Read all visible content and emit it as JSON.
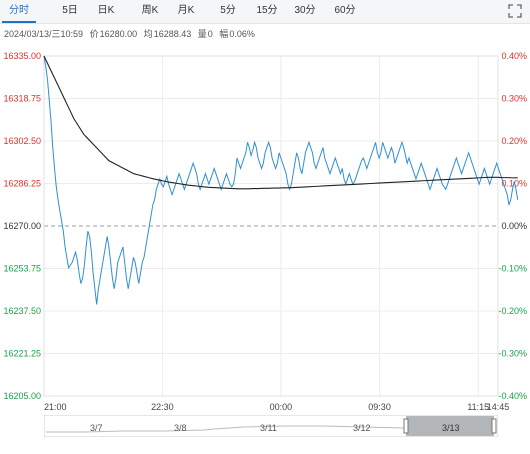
{
  "tabs": [
    {
      "label": "分时",
      "active": true
    },
    {
      "label": "5日",
      "active": false
    },
    {
      "label": "日K",
      "active": false
    },
    {
      "label": "周K",
      "active": false
    },
    {
      "label": "月K",
      "active": false
    },
    {
      "label": "5分",
      "active": false
    },
    {
      "label": "15分",
      "active": false
    },
    {
      "label": "30分",
      "active": false
    },
    {
      "label": "60分",
      "active": false
    }
  ],
  "info": {
    "datetime": "2024/03/13/三10:59",
    "price_label": "价",
    "price": "16280.00",
    "avg_label": "均",
    "avg": "16288.43",
    "vol_label": "量",
    "vol": "0",
    "change_label": "幅",
    "change": "0.06%"
  },
  "colors": {
    "up": "#e0322b",
    "down": "#1aa34a",
    "price_line": "#2f8fd6",
    "avg_line": "#222222",
    "grid": "#ececec",
    "tab_active": "#1f6fd2"
  },
  "chart_data": {
    "type": "line",
    "prev_close": 16270.0,
    "y_ticks": [
      16335.0,
      16318.75,
      16302.5,
      16286.25,
      16270.0,
      16253.75,
      16237.5,
      16221.25,
      16205.0
    ],
    "y_tick_labels": [
      "16335.00",
      "16318.75",
      "16302.50",
      "16286.25",
      "16270.00",
      "16253.75",
      "16237.50",
      "16221.25",
      "16205.00"
    ],
    "pct_tick_labels": [
      "0.40%",
      "0.30%",
      "0.20%",
      "0.10%",
      "0.00%",
      "-0.10%",
      "-0.20%",
      "-0.30%",
      "-0.40%"
    ],
    "ylim": [
      16205.0,
      16335.0
    ],
    "x_tick_labels": [
      "21:00",
      "22:30",
      "00:00",
      "09:30",
      "11:15",
      "14:45"
    ],
    "session_minutes_total": 345,
    "x_tick_minutes": [
      0,
      90,
      180,
      255,
      330,
      345
    ],
    "series": [
      {
        "values": [
          16335,
          16331,
          16326,
          16318,
          16310,
          16300,
          16292,
          16285,
          16280,
          16276,
          16272,
          16268,
          16262,
          16258,
          16254,
          16255,
          16256,
          16258,
          16260,
          16257,
          16252,
          16248,
          16250,
          16255,
          16262,
          16268,
          16266,
          16260,
          16252,
          16246,
          16240,
          16246,
          16250,
          16254,
          16258,
          16262,
          16266,
          16262,
          16256,
          16250,
          16246,
          16250,
          16256,
          16258,
          16260,
          16262,
          16256,
          16250,
          16246,
          16250,
          16254,
          16258,
          16256,
          16252,
          16248,
          16252,
          16256,
          16258,
          16262,
          16266,
          16270,
          16274,
          16278,
          16280,
          16284,
          16286,
          16288,
          16286,
          16285,
          16287,
          16289,
          16286,
          16284,
          16282,
          16284,
          16286,
          16288,
          16290,
          16288,
          16286,
          16284,
          16286,
          16288,
          16290,
          16292,
          16294,
          16292,
          16290,
          16286,
          16284,
          16286,
          16288,
          16290,
          16288,
          16286,
          16288,
          16290,
          16292,
          16290,
          16288,
          16286,
          16284,
          16286,
          16288,
          16290,
          16288,
          16286,
          16285,
          16286,
          16290,
          16296,
          16294,
          16292,
          16294,
          16296,
          16298,
          16302,
          16300,
          16297,
          16299,
          16302,
          16300,
          16296,
          16294,
          16292,
          16294,
          16298,
          16300,
          16302,
          16300,
          16296,
          16294,
          16292,
          16294,
          16298,
          16296,
          16294,
          16292,
          16290,
          16286,
          16284,
          16286,
          16290,
          16294,
          16298,
          16296,
          16292,
          16290,
          16294,
          16298,
          16300,
          16302,
          16300,
          16298,
          16294,
          16292,
          16294,
          16296,
          16298,
          16300,
          16296,
          16294,
          16292,
          16290,
          16292,
          16294,
          16296,
          16294,
          16292,
          16290,
          16292,
          16288,
          16286,
          16288,
          16290,
          16288,
          16286,
          16287,
          16289,
          16291,
          16293,
          16295,
          16296,
          16294,
          16292,
          16294,
          16296,
          16298,
          16300,
          16302,
          16298,
          16296,
          16298,
          16302,
          16300,
          16298,
          16296,
          16298,
          16300,
          16298,
          16294,
          16296,
          16298,
          16300,
          16302,
          16300,
          16297,
          16294,
          16296,
          16294,
          16292,
          16290,
          16288,
          16290,
          16292,
          16294,
          16292,
          16290,
          16288,
          16286,
          16284,
          16286,
          16288,
          16290,
          16292,
          16290,
          16288,
          16286,
          16285,
          16284,
          16286,
          16288,
          16290,
          16292,
          16294,
          16296,
          16294,
          16292,
          16290,
          16292,
          16294,
          16296,
          16298,
          16296,
          16294,
          16292,
          16290,
          16288,
          16286,
          16288,
          16290,
          16292,
          16290,
          16288,
          16286,
          16288,
          16290,
          16292,
          16294,
          16292,
          16290,
          16288,
          16286,
          16284,
          16282,
          16278,
          16280,
          16284,
          16287,
          16284,
          16280
        ]
      },
      {
        "values": [
          16335,
          16331,
          16327,
          16323,
          16319,
          16315,
          16311,
          16308,
          16305,
          16303,
          16301,
          16299,
          16297,
          16295,
          16294,
          16293,
          16292,
          16291,
          16290,
          16289.5,
          16289,
          16288.5,
          16288,
          16287.6,
          16287.2,
          16286.8,
          16286.5,
          16286.2,
          16285.9,
          16285.6,
          16285.4,
          16285.2,
          16285,
          16284.8,
          16284.7,
          16284.6,
          16284.5,
          16284.4,
          16284.3,
          16284.2,
          16284.2,
          16284.2,
          16284.3,
          16284.3,
          16284.4,
          16284.4,
          16284.5,
          16284.5,
          16284.6,
          16284.6,
          16284.7,
          16284.8,
          16284.9,
          16285,
          16285.1,
          16285.2,
          16285.3,
          16285.4,
          16285.5,
          16285.6,
          16285.7,
          16285.8,
          16285.9,
          16286,
          16286.1,
          16286.2,
          16286.3,
          16286.4,
          16286.5,
          16286.6,
          16286.7,
          16286.8,
          16286.9,
          16287,
          16287.1,
          16287.2,
          16287.3,
          16287.4,
          16287.5,
          16287.6,
          16287.7,
          16287.8,
          16287.9,
          16288,
          16288.1,
          16288.2,
          16288.3,
          16288.4,
          16288.5,
          16288.6,
          16288.6,
          16288.6,
          16288.5,
          16288.5,
          16288.4,
          16288.43
        ]
      }
    ]
  },
  "navigator": {
    "date_labels": [
      "3/7",
      "3/8",
      "3/11",
      "3/12",
      "3/13"
    ]
  }
}
